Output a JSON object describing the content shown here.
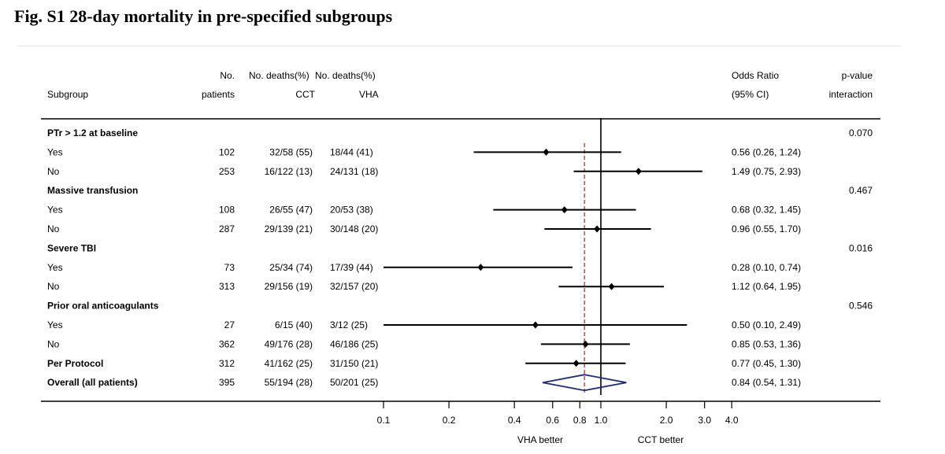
{
  "figure_title": "Fig. S1 28-day mortality in pre-specified subgroups",
  "chart_data": {
    "type": "forest",
    "title": "Fig. S1 28-day mortality in pre-specified subgroups",
    "x_scale": "log",
    "xlim": [
      0.1,
      4.0
    ],
    "x_ticks": [
      0.1,
      0.2,
      0.4,
      0.6,
      0.8,
      1.0,
      2.0,
      3.0,
      4.0
    ],
    "x_tick_labels": [
      "0.1",
      "0.2",
      "0.4",
      "0.6",
      "0.8",
      "1.0",
      "2.0",
      "3.0",
      "4.0"
    ],
    "reference_line": 1.0,
    "overall_estimate_line": 0.84,
    "left_direction_label": "VHA better",
    "right_direction_label": "CCT better",
    "headers": {
      "subgroup": "Subgroup",
      "patients_line1": "No.",
      "patients_line2": "patients",
      "cct_line1": "No. deaths(%)",
      "cct_line2": "CCT",
      "vha_line1": "No. deaths(%)",
      "vha_line2": "VHA",
      "or_line1": "Odds Ratio",
      "or_line2": "(95% CI)",
      "p_line1": "p-value",
      "p_line2": "interaction"
    },
    "rows": [
      {
        "label": "PTr > 1.2 at baseline",
        "bold": true,
        "p": "0.070"
      },
      {
        "label": "Yes",
        "n": "102",
        "cct": "32/58 (55)",
        "vha": "18/44 (41)",
        "or": 0.56,
        "lo": 0.26,
        "hi": 1.24,
        "ci_text": "0.56 (0.26, 1.24)"
      },
      {
        "label": "No",
        "n": "253",
        "cct": "16/122 (13)",
        "vha": "24/131 (18)",
        "or": 1.49,
        "lo": 0.75,
        "hi": 2.93,
        "ci_text": "1.49 (0.75, 2.93)"
      },
      {
        "label": "Massive transfusion",
        "bold": true,
        "p": "0.467"
      },
      {
        "label": "Yes",
        "n": "108",
        "cct": "26/55 (47)",
        "vha": "20/53 (38)",
        "or": 0.68,
        "lo": 0.32,
        "hi": 1.45,
        "ci_text": "0.68 (0.32, 1.45)"
      },
      {
        "label": "No",
        "n": "287",
        "cct": "29/139 (21)",
        "vha": "30/148 (20)",
        "or": 0.96,
        "lo": 0.55,
        "hi": 1.7,
        "ci_text": "0.96 (0.55, 1.70)"
      },
      {
        "label": "Severe TBI",
        "bold": true,
        "p": "0.016"
      },
      {
        "label": "Yes",
        "n": "73",
        "cct": "25/34 (74)",
        "vha": "17/39 (44)",
        "or": 0.28,
        "lo": 0.1,
        "hi": 0.74,
        "ci_text": "0.28 (0.10, 0.74)"
      },
      {
        "label": "No",
        "n": "313",
        "cct": "29/156 (19)",
        "vha": "32/157 (20)",
        "or": 1.12,
        "lo": 0.64,
        "hi": 1.95,
        "ci_text": "1.12 (0.64, 1.95)"
      },
      {
        "label": "Prior oral anticoagulants",
        "bold": true,
        "p": "0.546"
      },
      {
        "label": "Yes",
        "n": "27",
        "cct": "6/15 (40)",
        "vha": "3/12 (25)",
        "or": 0.5,
        "lo": 0.1,
        "hi": 2.49,
        "ci_text": "0.50 (0.10, 2.49)"
      },
      {
        "label": "No",
        "n": "362",
        "cct": "49/176 (28)",
        "vha": "46/186 (25)",
        "or": 0.85,
        "lo": 0.53,
        "hi": 1.36,
        "ci_text": "0.85 (0.53, 1.36)"
      },
      {
        "label": "Per Protocol",
        "bold": true,
        "n": "312",
        "cct": "41/162 (25)",
        "vha": "31/150 (21)",
        "or": 0.77,
        "lo": 0.45,
        "hi": 1.3,
        "ci_text": "0.77 (0.45, 1.30)"
      },
      {
        "label": "Overall (all patients)",
        "bold": true,
        "n": "395",
        "cct": "55/194 (28)",
        "vha": "50/201 (25)",
        "or": 0.84,
        "lo": 0.54,
        "hi": 1.31,
        "ci_text": "0.84 (0.54, 1.31)",
        "diamond": true
      }
    ],
    "colors": {
      "text": "#000000",
      "diamond": "#1f2a78",
      "estimate_line": "#a0403a"
    }
  }
}
